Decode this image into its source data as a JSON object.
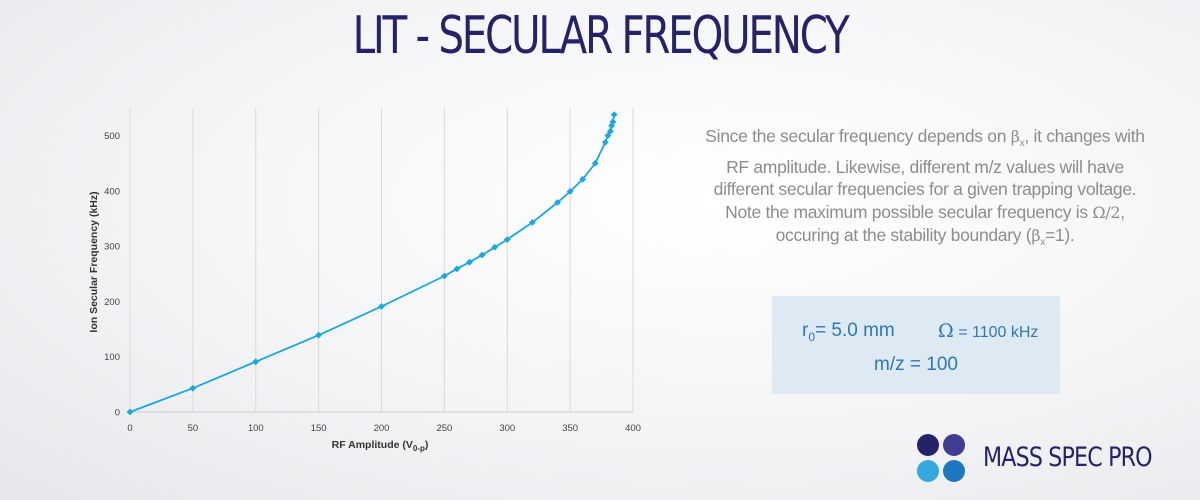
{
  "slide": {
    "title": "LIT - SECULAR FREQUENCY",
    "description": {
      "part1": "Since the secular frequency depends on ",
      "beta_symbol": "β",
      "sub_x": "x",
      "part2": ", it changes with RF amplitude.  Likewise, different m/z values will have different secular frequencies for a given trapping voltage.  Note the maximum possible secular frequency is ",
      "omega_half": "Ω/2",
      "part3": ", occuring at the stability boundary (",
      "part4": "=1)."
    },
    "parameters": {
      "r0_label": "r",
      "r0_sub": "0",
      "r0_value": "= 5.0 mm",
      "omega_symbol": "Ω",
      "omega_value": " = 1100 kHz",
      "mz": "m/z = 100"
    },
    "logo": {
      "text": "MASS SPEC PRO",
      "colors": [
        "#24236a",
        "#413d93",
        "#36a8e0",
        "#1d78bf"
      ]
    }
  },
  "chart_data": {
    "type": "line",
    "xlabel": "RF Amplitude (V",
    "xlabel_sub": "0-p",
    "xlabel_end": ")",
    "ylabel": "Ion Secular Frequency (kHz)",
    "xlim": [
      0,
      400
    ],
    "ylim": [
      0,
      550
    ],
    "x_ticks": [
      "0",
      "50",
      "100",
      "150",
      "200",
      "250",
      "300",
      "350",
      "400"
    ],
    "y_ticks": [
      "0",
      "100",
      "200",
      "300",
      "400",
      "500"
    ],
    "grid": "vertical",
    "color": "#1ba6e6",
    "series": [
      {
        "x": [
          0,
          50,
          100,
          150,
          200,
          250,
          260,
          270,
          280,
          290,
          300,
          320,
          340,
          350,
          360,
          370,
          378,
          380,
          382,
          383,
          384,
          385
        ],
        "y": [
          0,
          43,
          91,
          139,
          191,
          246,
          259,
          271,
          284,
          298,
          312,
          343,
          379,
          399,
          421,
          450,
          488,
          500,
          508,
          518,
          525,
          538
        ]
      }
    ]
  }
}
